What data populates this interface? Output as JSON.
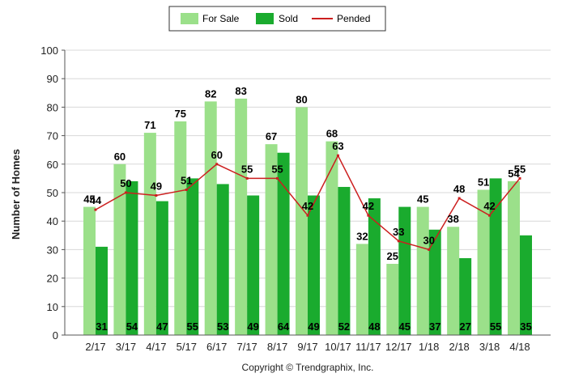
{
  "chart_data": {
    "type": "bar",
    "ylabel": "Number of Homes",
    "ylim": [
      0,
      100
    ],
    "yticks": [
      "0",
      "10",
      "20",
      "30",
      "40",
      "50",
      "60",
      "70",
      "80",
      "90",
      "100"
    ],
    "grid": true,
    "legend_position": "top-center",
    "categories": [
      "2/17",
      "3/17",
      "4/17",
      "5/17",
      "6/17",
      "7/17",
      "8/17",
      "9/17",
      "10/17",
      "11/17",
      "12/17",
      "1/18",
      "2/18",
      "3/18",
      "4/18"
    ],
    "series": [
      {
        "name": "For Sale",
        "kind": "bar",
        "color": "#9be08a",
        "values": [
          45,
          60,
          71,
          75,
          82,
          83,
          67,
          80,
          68,
          32,
          25,
          45,
          38,
          51,
          54
        ]
      },
      {
        "name": "Sold",
        "kind": "bar",
        "color": "#1aab2e",
        "values": [
          31,
          54,
          47,
          55,
          53,
          49,
          64,
          49,
          52,
          48,
          45,
          37,
          27,
          55,
          35
        ]
      },
      {
        "name": "Pended",
        "kind": "line",
        "color": "#cc1f1f",
        "values": [
          44,
          50,
          49,
          51,
          60,
          55,
          55,
          42,
          63,
          42,
          33,
          30,
          48,
          42,
          55
        ]
      }
    ]
  },
  "footer": {
    "copyright": "Copyright © Trendgraphix, Inc."
  }
}
